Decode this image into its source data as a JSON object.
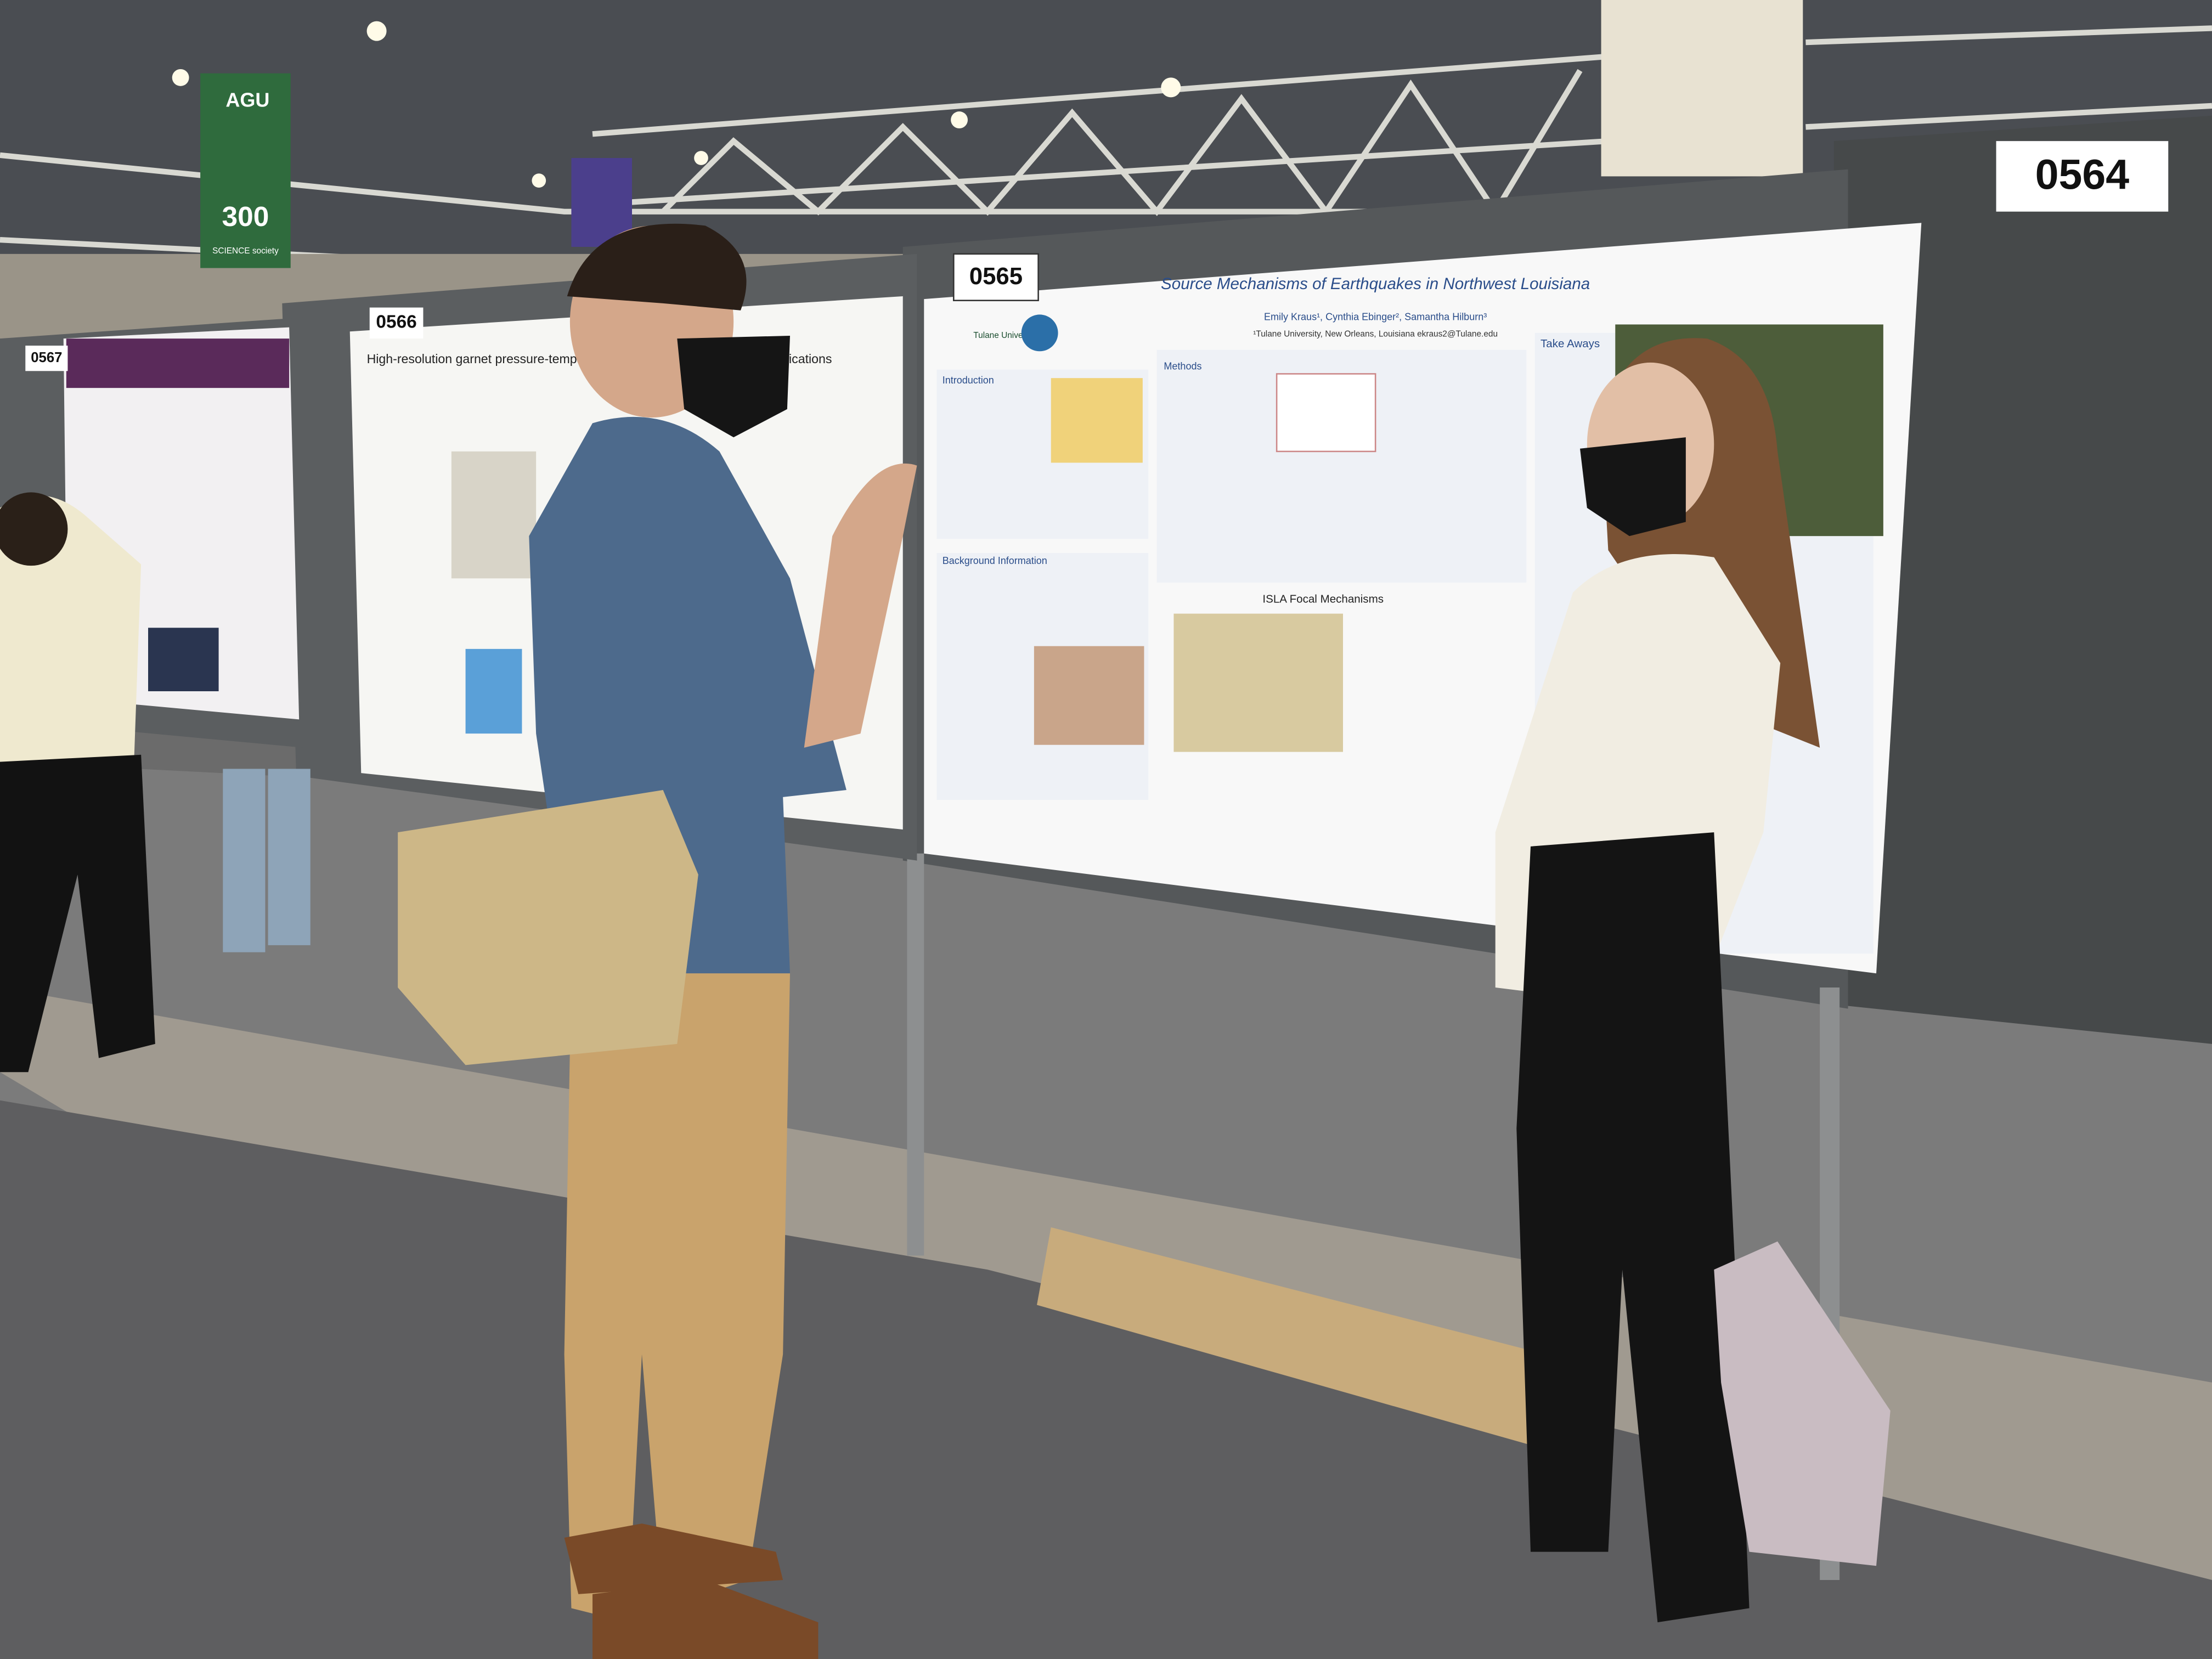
{
  "signs": {
    "banner_brand": "AGU",
    "banner_number": "300",
    "banner_caption": "SCIENCE society",
    "booth_numbers": [
      "0567",
      "0566",
      "0565",
      "0564"
    ]
  },
  "poster_left": {
    "title": "High-resolution garnet pressure-temperature paths ... Western Turkey: Implications"
  },
  "poster_main": {
    "title": "Source Mechanisms of Earthquakes in Northwest Louisiana",
    "authors": "Emily Kraus¹, Cynthia Ebinger², Samantha Hilburn³",
    "affiliation": "¹Tulane University, New Orleans, Louisiana  ekraus2@Tulane.edu",
    "logo": "Tulane University",
    "sections": [
      "Introduction",
      "Methods",
      "Take Aways",
      "Background Information",
      "ISLA Focal Mechanisms"
    ]
  }
}
